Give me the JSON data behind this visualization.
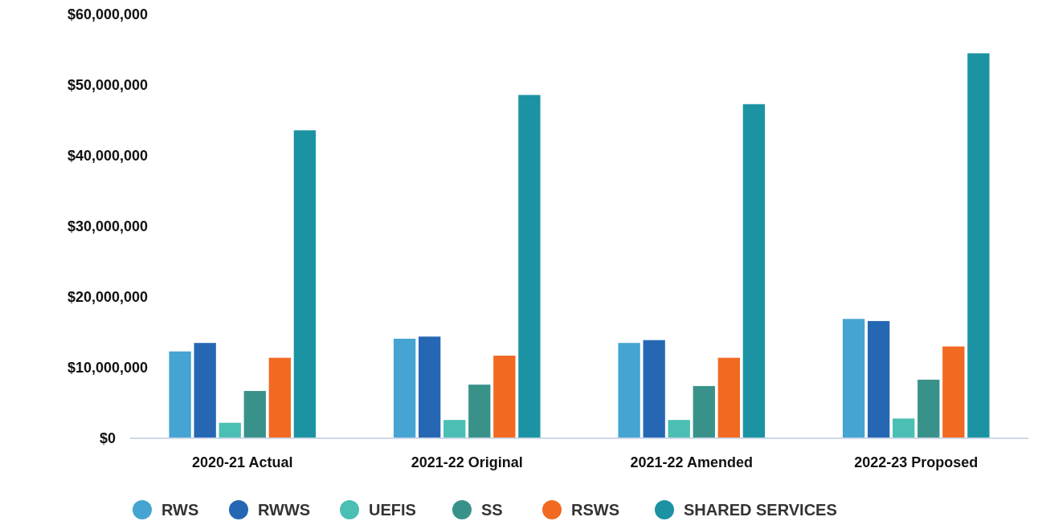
{
  "chart_data": {
    "type": "bar",
    "categories": [
      "2020-21 Actual",
      "2021-22 Original",
      "2021-22 Amended",
      "2022-23 Proposed"
    ],
    "series": [
      {
        "name": "RWS",
        "color": "#45a4d1",
        "values": [
          12300000,
          14100000,
          13500000,
          16900000
        ]
      },
      {
        "name": "RWWS",
        "color": "#2667b4",
        "values": [
          13500000,
          14400000,
          13900000,
          16600000
        ]
      },
      {
        "name": "UEFIS",
        "color": "#4bbfb3",
        "values": [
          2200000,
          2600000,
          2600000,
          2800000
        ]
      },
      {
        "name": "SS",
        "color": "#39928a",
        "values": [
          6700000,
          7600000,
          7400000,
          8300000
        ]
      },
      {
        "name": "RSWS",
        "color": "#f26922",
        "values": [
          11400000,
          11700000,
          11400000,
          13000000
        ]
      },
      {
        "name": "SHARED SERVICES",
        "color": "#1b93a2",
        "values": [
          43600000,
          48600000,
          47300000,
          54500000
        ]
      }
    ],
    "ylim": [
      0,
      60000000
    ],
    "yticks": [
      {
        "value": 0,
        "label": "$0"
      },
      {
        "value": 10000000,
        "label": "$10,000,000"
      },
      {
        "value": 20000000,
        "label": "$20,000,000"
      },
      {
        "value": 30000000,
        "label": "$30,000,000"
      },
      {
        "value": 40000000,
        "label": "$40,000,000"
      },
      {
        "value": 50000000,
        "label": "$50,000,000"
      },
      {
        "value": 60000000,
        "label": "$60,000,000"
      }
    ],
    "grid": false,
    "legend": "bottom"
  }
}
